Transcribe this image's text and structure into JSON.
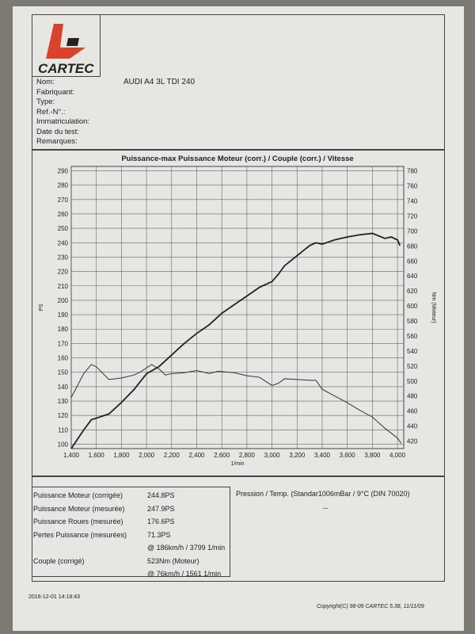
{
  "logo": {
    "text": "CARTEC",
    "color": "#d9432b"
  },
  "info": {
    "labels": [
      "Nom:",
      "Fabriquant:",
      "Type:",
      "Ref.-N°.:",
      "Immatriculation:",
      "Date du test:",
      "Remarques:"
    ],
    "nom_value": "AUDI A4 3L TDI 240"
  },
  "results": {
    "rows": [
      {
        "label": "Puissance Moteur (corrigée)",
        "value": "244.8PS"
      },
      {
        "label": "Puissance Moteur (mesurée)",
        "value": "247.9PS"
      },
      {
        "label": "Puissance Roues (mesurée)",
        "value": "176.6PS"
      },
      {
        "label": "Pertes Puissance (mesurées)",
        "value": "71.3PS"
      },
      {
        "label": "",
        "value": "@ 186km/h / 3799 1/min"
      },
      {
        "label": "Couple (corrigé)",
        "value": "523Nm (Moteur)"
      },
      {
        "label": "",
        "value": "@ 76km/h / 1561 1/min"
      }
    ],
    "pressure": "Pression / Temp. (Standar1006mBar / 9°C   (DIN 70020)",
    "pressure_value": "--"
  },
  "footer": {
    "timestamp": "2016-12-01 14:18:43",
    "copyright": "Copyright(C) 98-09 CARTEC 5.38, 11/11/09"
  },
  "chart_data": {
    "type": "line",
    "title": "Puissance-max Puissance Moteur (corr.) / Couple (corr.) / Vitesse",
    "xlabel": "1/min",
    "ylabel_left": "PS",
    "ylabel_right": "Nm (Moteur)",
    "xlim": [
      1400,
      4050
    ],
    "ylim_left": [
      97,
      293
    ],
    "ylim_right": [
      410,
      786
    ],
    "x_ticks": [
      1400,
      1600,
      1800,
      2000,
      2200,
      2400,
      2600,
      2800,
      3000,
      3200,
      3400,
      3600,
      3800,
      4000
    ],
    "y_left_ticks": [
      100,
      110,
      120,
      130,
      140,
      150,
      160,
      170,
      180,
      190,
      200,
      210,
      220,
      230,
      240,
      250,
      260,
      270,
      280,
      290
    ],
    "y_right_ticks": [
      420,
      440,
      460,
      480,
      500,
      520,
      540,
      560,
      580,
      600,
      620,
      640,
      660,
      680,
      700,
      720,
      740,
      760,
      780
    ],
    "grid": true,
    "series": [
      {
        "axis": "left",
        "color": "#222",
        "points": [
          [
            1400,
            97
          ],
          [
            1500,
            110
          ],
          [
            1560,
            117
          ],
          [
            1700,
            121
          ],
          [
            1800,
            129
          ],
          [
            1900,
            138
          ],
          [
            2000,
            149
          ],
          [
            2100,
            154
          ],
          [
            2200,
            162
          ],
          [
            2300,
            170
          ],
          [
            2400,
            177
          ],
          [
            2500,
            183
          ],
          [
            2600,
            191
          ],
          [
            2700,
            197
          ],
          [
            2800,
            203
          ],
          [
            2900,
            209
          ],
          [
            3000,
            213
          ],
          [
            3050,
            218
          ],
          [
            3100,
            224
          ],
          [
            3200,
            231
          ],
          [
            3300,
            238
          ],
          [
            3350,
            240
          ],
          [
            3400,
            239
          ],
          [
            3500,
            242
          ],
          [
            3600,
            244
          ],
          [
            3700,
            245.5
          ],
          [
            3800,
            246.5
          ],
          [
            3900,
            243
          ],
          [
            3950,
            244
          ],
          [
            4000,
            242
          ],
          [
            4020,
            238
          ]
        ]
      },
      {
        "axis": "right",
        "color": "#333",
        "points": [
          [
            1400,
            478
          ],
          [
            1500,
            510
          ],
          [
            1560,
            522
          ],
          [
            1600,
            519
          ],
          [
            1700,
            502
          ],
          [
            1800,
            504
          ],
          [
            1900,
            508
          ],
          [
            1950,
            512
          ],
          [
            2040,
            522
          ],
          [
            2100,
            516
          ],
          [
            2150,
            508
          ],
          [
            2200,
            510
          ],
          [
            2300,
            511
          ],
          [
            2400,
            514
          ],
          [
            2500,
            510
          ],
          [
            2570,
            513
          ],
          [
            2700,
            511
          ],
          [
            2800,
            507
          ],
          [
            2900,
            505
          ],
          [
            3000,
            494
          ],
          [
            3050,
            497
          ],
          [
            3100,
            503
          ],
          [
            3200,
            502
          ],
          [
            3300,
            501
          ],
          [
            3350,
            501
          ],
          [
            3400,
            489
          ],
          [
            3500,
            480
          ],
          [
            3600,
            471
          ],
          [
            3700,
            461
          ],
          [
            3800,
            452
          ],
          [
            3900,
            437
          ],
          [
            4000,
            424
          ],
          [
            4030,
            417
          ]
        ]
      }
    ]
  }
}
